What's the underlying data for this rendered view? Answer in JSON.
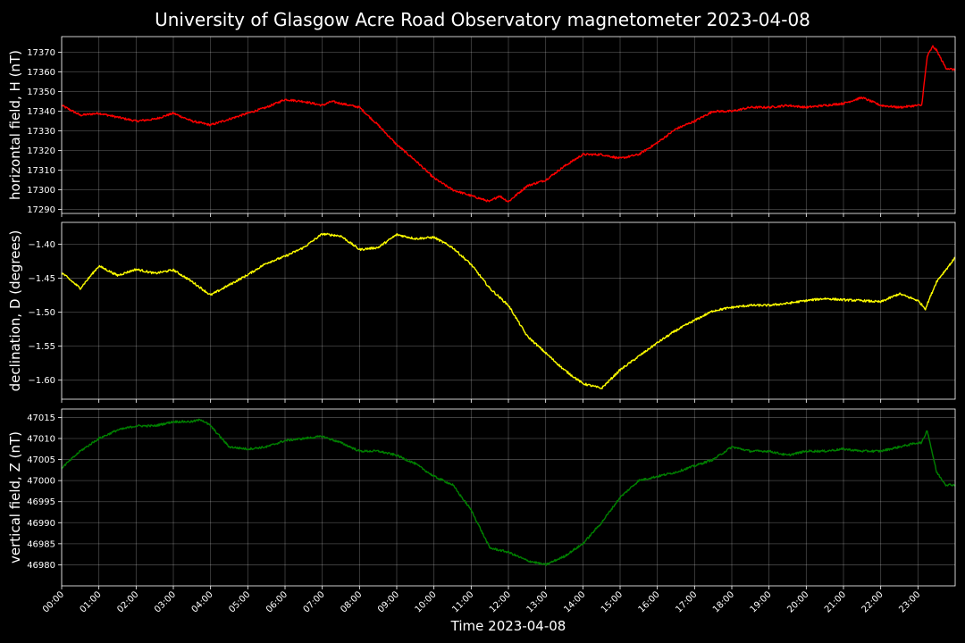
{
  "chart_data": {
    "type": "line",
    "title": "University of Glasgow Acre Road Observatory magnetometer 2023-04-08",
    "xlabel": "Time 2023-04-08",
    "x_tick_labels": [
      "00:00",
      "01:00",
      "02:00",
      "03:00",
      "04:00",
      "05:00",
      "06:00",
      "07:00",
      "08:00",
      "09:00",
      "10:00",
      "11:00",
      "12:00",
      "13:00",
      "14:00",
      "15:00",
      "16:00",
      "17:00",
      "18:00",
      "19:00",
      "20:00",
      "21:00",
      "22:00",
      "23:00"
    ],
    "xlim_hours": [
      0,
      24
    ],
    "grid": true,
    "panels": [
      {
        "ylabel": "horizontal field, H (nT)",
        "color": "#ff0000",
        "ylim": [
          17288,
          17378
        ],
        "y_ticks": [
          17290,
          17300,
          17310,
          17320,
          17330,
          17340,
          17350,
          17360,
          17370
        ],
        "x": [
          0,
          0.5,
          1,
          1.5,
          2,
          2.5,
          3,
          3.5,
          4,
          4.5,
          5,
          5.5,
          6,
          6.5,
          7,
          7.25,
          7.5,
          8,
          8.5,
          9,
          9.5,
          10,
          10.5,
          11,
          11.5,
          11.75,
          12,
          12.5,
          13,
          13.5,
          14,
          14.5,
          15,
          15.5,
          16,
          16.5,
          17,
          17.5,
          18,
          18.5,
          19,
          19.5,
          20,
          20.5,
          21,
          21.5,
          22,
          22.5,
          23,
          23.1,
          23.25,
          23.4,
          23.5,
          23.75,
          24
        ],
        "values": [
          17343,
          17338,
          17339,
          17337,
          17335,
          17336,
          17339,
          17335,
          17333,
          17336,
          17339,
          17342,
          17346,
          17345,
          17343,
          17345,
          17344,
          17342,
          17333,
          17323,
          17315,
          17306,
          17300,
          17297,
          17294,
          17297,
          17294,
          17302,
          17305,
          17312,
          17318,
          17318,
          17316,
          17318,
          17324,
          17331,
          17335,
          17340,
          17340,
          17342,
          17342,
          17343,
          17342,
          17343,
          17344,
          17347,
          17343,
          17342,
          17343,
          17343,
          17368,
          17373,
          17371,
          17362,
          17361
        ]
      },
      {
        "ylabel": "declination, D (degrees)",
        "color": "#ffff00",
        "ylim": [
          -1.628,
          -1.368
        ],
        "y_ticks": [
          -1.6,
          -1.55,
          -1.5,
          -1.45,
          -1.4
        ],
        "y_tick_labels": [
          "−1.60",
          "−1.55",
          "−1.50",
          "−1.45",
          "−1.40"
        ],
        "x": [
          0,
          0.5,
          1,
          1.5,
          2,
          2.5,
          3,
          3.5,
          4,
          4.5,
          5,
          5.5,
          6,
          6.5,
          7,
          7.5,
          8,
          8.5,
          9,
          9.5,
          10,
          10.5,
          11,
          11.5,
          12,
          12.5,
          13,
          13.5,
          14,
          14.5,
          15,
          15.5,
          16,
          16.5,
          17,
          17.5,
          18,
          18.5,
          19,
          19.5,
          20,
          20.5,
          21,
          21.5,
          22,
          22.5,
          23,
          23.2,
          23.5,
          24
        ],
        "values": [
          -1.442,
          -1.465,
          -1.432,
          -1.446,
          -1.437,
          -1.443,
          -1.438,
          -1.455,
          -1.475,
          -1.46,
          -1.445,
          -1.428,
          -1.418,
          -1.405,
          -1.385,
          -1.388,
          -1.408,
          -1.405,
          -1.386,
          -1.392,
          -1.39,
          -1.405,
          -1.43,
          -1.465,
          -1.49,
          -1.535,
          -1.56,
          -1.585,
          -1.605,
          -1.612,
          -1.585,
          -1.565,
          -1.545,
          -1.527,
          -1.512,
          -1.498,
          -1.493,
          -1.49,
          -1.49,
          -1.487,
          -1.483,
          -1.48,
          -1.482,
          -1.483,
          -1.485,
          -1.473,
          -1.483,
          -1.495,
          -1.455,
          -1.42
        ]
      },
      {
        "ylabel": "vertical field, Z (nT)",
        "color": "#008000",
        "ylim": [
          46975,
          47017
        ],
        "y_ticks": [
          46980,
          46985,
          46990,
          46995,
          47000,
          47005,
          47010,
          47015
        ],
        "x": [
          0,
          0.5,
          1,
          1.5,
          2,
          2.5,
          3,
          3.5,
          3.75,
          4,
          4.5,
          5,
          5.5,
          6,
          6.5,
          7,
          7.5,
          8,
          8.5,
          9,
          9.5,
          10,
          10.5,
          11,
          11.5,
          12,
          12.5,
          13,
          13.5,
          14,
          14.5,
          15,
          15.5,
          16,
          16.5,
          17,
          17.5,
          18,
          18.5,
          19,
          19.5,
          20,
          20.5,
          21,
          21.5,
          22,
          22.5,
          23,
          23.1,
          23.25,
          23.5,
          23.75,
          24
        ],
        "values": [
          47003,
          47007,
          47010,
          47012,
          47013,
          47013,
          47014,
          47014,
          47014.5,
          47013,
          47008,
          47007.5,
          47008,
          47009.5,
          47010,
          47010.5,
          47009,
          47007,
          47007,
          47006,
          47004,
          47001,
          46999,
          46993,
          46984,
          46983,
          46981,
          46980,
          46982,
          46985,
          46990,
          46996,
          47000,
          47001,
          47002,
          47003.5,
          47005,
          47008,
          47007,
          47007,
          47006,
          47007,
          47007,
          47007.5,
          47007,
          47007,
          47008,
          47009,
          47009,
          47012,
          47002,
          46999,
          46999
        ]
      }
    ]
  }
}
